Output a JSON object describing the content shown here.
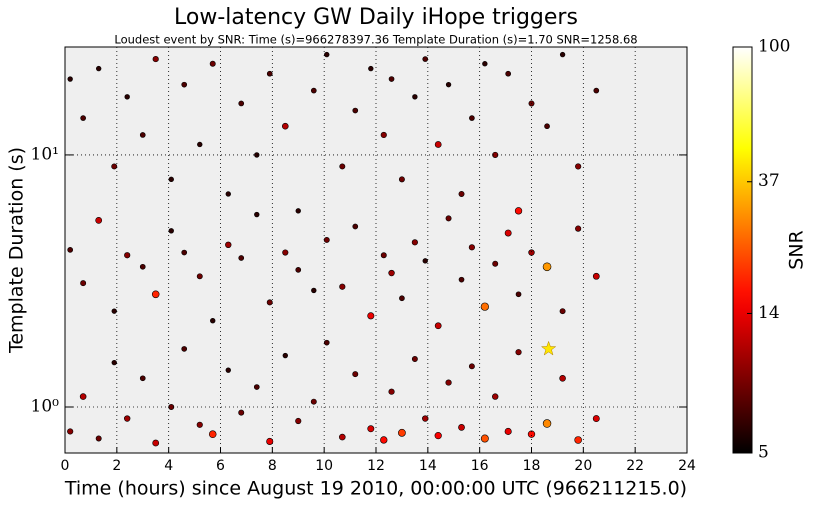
{
  "chart_data": {
    "type": "scatter",
    "title": "Low-latency GW Daily iHope triggers",
    "subtitle": "Loudest event by SNR: Time (s)=966278397.36 Template Duration (s)=1.70 SNR=1258.68",
    "xlabel": "Time (hours) since August 19 2010, 00:00:00 UTC (966211215.0)",
    "ylabel": "Template Duration (s)",
    "colorbar_label": "SNR",
    "xlim": [
      0,
      24
    ],
    "xticks": [
      0,
      2,
      4,
      6,
      8,
      10,
      12,
      14,
      16,
      18,
      20,
      22,
      24
    ],
    "ylim": [
      0.657,
      26.8
    ],
    "yscale": "log",
    "yticks": [
      {
        "value": 1,
        "label": "10⁰"
      },
      {
        "value": 10,
        "label": "10¹"
      }
    ],
    "clim": [
      5,
      100
    ],
    "cticks": [
      5,
      14,
      37,
      100
    ],
    "colormap": "hot",
    "grid": true,
    "background": "#efefef",
    "loudest": {
      "x": 18.66,
      "y": 1.7,
      "color": "#ffe600"
    },
    "x": [
      0.2,
      0.7,
      1.3,
      1.9,
      2.4,
      3.0,
      3.5,
      4.1,
      4.6,
      5.2,
      5.7,
      6.3,
      6.8,
      7.4,
      7.9,
      8.5,
      9.0,
      9.6,
      10.1,
      10.7,
      11.2,
      11.8,
      12.3,
      12.6,
      13.0,
      13.5,
      13.9,
      14.4,
      14.8,
      15.3,
      15.7,
      16.2,
      16.6,
      17.1,
      17.5,
      18.0,
      18.6,
      19.2,
      19.8,
      20.5,
      0.2,
      0.7,
      1.3,
      1.9,
      2.4,
      3.0,
      3.5,
      4.1,
      4.6,
      5.2,
      5.7,
      6.3,
      6.8,
      7.4,
      7.9,
      8.5,
      9.0,
      9.6,
      10.1,
      10.7,
      11.2,
      11.8,
      12.3,
      12.6,
      13.0,
      13.5,
      13.9,
      14.4,
      14.8,
      15.3,
      15.7,
      16.2,
      16.6,
      17.1,
      17.5,
      18.0,
      18.6,
      19.2,
      19.8,
      20.5,
      0.2,
      0.7,
      1.3,
      1.9,
      2.4,
      3.0,
      3.5,
      4.1,
      4.6,
      5.2,
      5.7,
      6.3,
      6.8,
      7.4,
      7.9,
      8.5,
      9.0,
      9.6,
      10.1,
      10.7,
      11.2,
      11.8,
      12.3,
      12.6,
      13.0,
      13.5,
      13.9,
      14.4,
      14.8,
      15.3,
      15.7,
      16.2,
      16.6,
      17.1,
      17.5,
      18.0,
      18.6,
      19.2,
      19.8,
      20.5
    ],
    "y": [
      20,
      14,
      22,
      9,
      17,
      12,
      24,
      8,
      19,
      11,
      23,
      7,
      16,
      10,
      21,
      13,
      6,
      18,
      25,
      9,
      15,
      22,
      12,
      20,
      8,
      17,
      24,
      11,
      19,
      7,
      14,
      23,
      10,
      21,
      6,
      16,
      13,
      25,
      9,
      18,
      4.2,
      3.1,
      5.5,
      2.4,
      4.0,
      3.6,
      2.8,
      5.0,
      4.1,
      3.3,
      2.2,
      4.4,
      3.9,
      5.8,
      2.6,
      4.1,
      3.5,
      2.9,
      4.6,
      3.0,
      5.2,
      2.3,
      4.0,
      3.4,
      2.7,
      4.5,
      3.8,
      2.1,
      5.6,
      3.2,
      4.3,
      2.5,
      3.7,
      4.9,
      2.8,
      4.1,
      3.6,
      2.4,
      5.1,
      3.3,
      0.8,
      1.1,
      0.75,
      1.5,
      0.9,
      1.3,
      0.72,
      1.0,
      1.7,
      0.85,
      0.78,
      1.4,
      0.95,
      1.2,
      0.73,
      1.6,
      0.88,
      1.05,
      1.8,
      0.76,
      1.35,
      0.82,
      0.74,
      1.15,
      0.79,
      1.55,
      0.9,
      0.77,
      1.25,
      0.83,
      1.45,
      0.75,
      1.1,
      0.8,
      1.65,
      0.78,
      0.86,
      1.3,
      0.74,
      0.9
    ],
    "snr": [
      6,
      7,
      6,
      8,
      6,
      7,
      9,
      6,
      7,
      6,
      8,
      6,
      7,
      6,
      7,
      11,
      6,
      7,
      6,
      8,
      7,
      6,
      9,
      7,
      8,
      6,
      7,
      12,
      6,
      8,
      7,
      6,
      9,
      7,
      16,
      8,
      7,
      6,
      9,
      7,
      7,
      8,
      12,
      6,
      9,
      7,
      18,
      6,
      7,
      8,
      6,
      10,
      7,
      6,
      8,
      9,
      7,
      6,
      8,
      9,
      7,
      14,
      8,
      10,
      7,
      9,
      6,
      12,
      8,
      7,
      9,
      25,
      8,
      13,
      7,
      10,
      30,
      8,
      9,
      12,
      9,
      11,
      8,
      6,
      10,
      7,
      12,
      8,
      7,
      9,
      18,
      6,
      8,
      7,
      14,
      6,
      9,
      8,
      7,
      11,
      8,
      13,
      16,
      9,
      20,
      8,
      10,
      15,
      9,
      12,
      8,
      22,
      10,
      14,
      9,
      16,
      28,
      11,
      18,
      13
    ]
  }
}
